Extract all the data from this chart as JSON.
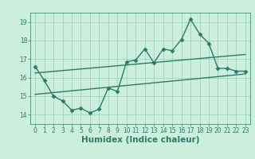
{
  "title": "",
  "xlabel": "Humidex (Indice chaleur)",
  "bg_color": "#cceedd",
  "grid_color": "#99ccbb",
  "line_color": "#2d7a6a",
  "xlim": [
    -0.5,
    23.5
  ],
  "ylim": [
    13.5,
    19.5
  ],
  "yticks": [
    14,
    15,
    16,
    17,
    18,
    19
  ],
  "xticks": [
    0,
    1,
    2,
    3,
    4,
    5,
    6,
    7,
    8,
    9,
    10,
    11,
    12,
    13,
    14,
    15,
    16,
    17,
    18,
    19,
    20,
    21,
    22,
    23
  ],
  "main_line_x": [
    0,
    1,
    2,
    3,
    4,
    5,
    6,
    7,
    8,
    9,
    10,
    11,
    12,
    13,
    14,
    15,
    16,
    17,
    18,
    19,
    20,
    21,
    22,
    23
  ],
  "main_line_y": [
    16.6,
    15.85,
    15.0,
    14.75,
    14.25,
    14.35,
    14.1,
    14.3,
    15.45,
    15.25,
    16.85,
    16.95,
    17.55,
    16.8,
    17.55,
    17.45,
    18.05,
    19.15,
    18.35,
    17.85,
    16.5,
    16.5,
    16.35,
    16.35
  ],
  "upper_line_x": [
    0,
    23
  ],
  "upper_line_y": [
    16.25,
    17.25
  ],
  "lower_line_x": [
    0,
    23
  ],
  "lower_line_y": [
    15.1,
    16.2
  ],
  "marker": "D",
  "marker_size": 2.5,
  "line_width": 1.0,
  "tick_fontsize": 5.5,
  "xlabel_fontsize": 7.5
}
